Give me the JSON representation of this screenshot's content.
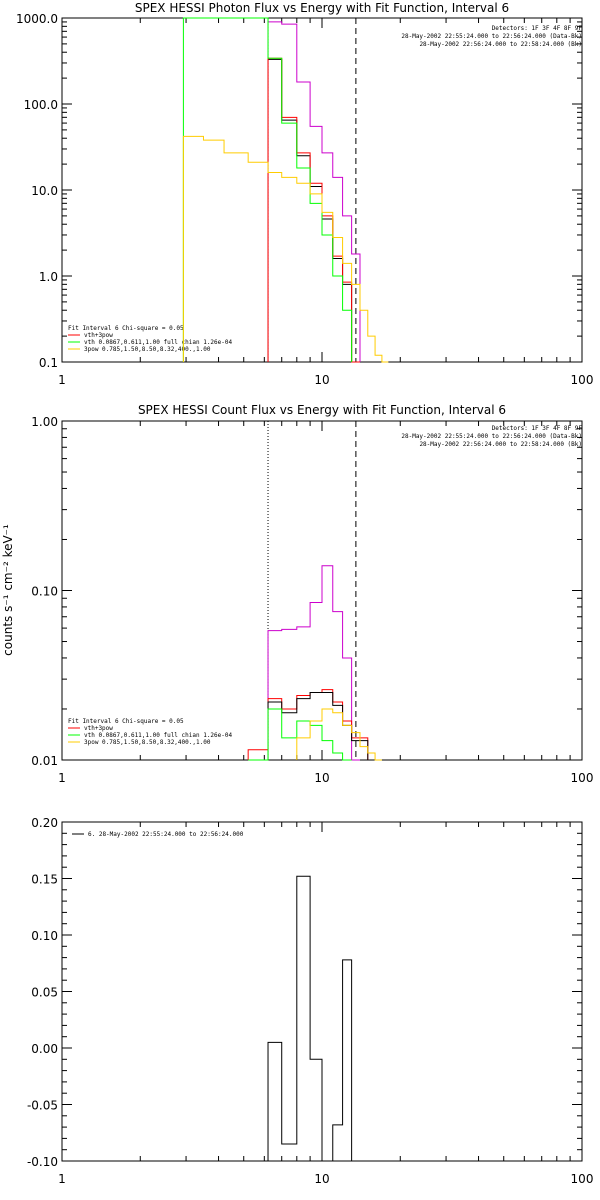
{
  "colors": {
    "red": "#ff0000",
    "green": "#00ff00",
    "yellow": "#ffcc00",
    "magenta": "#cc00cc",
    "black": "#000000"
  },
  "chart_data": [
    {
      "type": "line",
      "title": "SPEX HESSI Photon Flux vs Energy with Fit Function, Interval 6",
      "xscale": "log",
      "yscale": "log",
      "xlim": [
        1,
        100
      ],
      "ylim": [
        0.1,
        1000
      ],
      "xticklabels": [
        "1",
        "10",
        "100"
      ],
      "yticks": [
        0.1,
        1,
        10,
        100,
        1000
      ],
      "yticklabels": [
        "0.1",
        "1.0",
        "10.0",
        "100.0",
        "1000.0"
      ],
      "vlines": [
        {
          "x": 6.2,
          "style": "dotted"
        },
        {
          "x": 13.5,
          "style": "dashed"
        }
      ],
      "info_lines": [
        "Detectors: 1F 3F 4F 8F 9F",
        "28-May-2002 22:55:24.000 to 22:56:24.000 (Data-Bk)",
        "28-May-2002 22:56:24.000 to 22:58:24.000 (Bk)"
      ],
      "info_colors": [
        "black",
        "black",
        "magenta"
      ],
      "fit_lines": [
        "Fit Interval 6   Chi-square = 0.05",
        "vth+3pow",
        "vth 0.0867,0.611,1.00  full chian 1.26e-04",
        "3pow 0.785,1.50,8.50,8.32,400.,1.00"
      ],
      "fit_colors": [
        "black",
        "red",
        "green",
        "yellow"
      ],
      "series": [
        {
          "name": "",
          "color": "magenta",
          "edges": [
            6.2,
            7.0,
            8.0,
            9.0,
            10.0,
            11.0,
            12.0,
            13.0,
            14.0
          ],
          "values": [
            900,
            850,
            180,
            55,
            27,
            14,
            5.0,
            1.8
          ]
        },
        {
          "name": "",
          "color": "black",
          "edges": [
            6.2,
            7.0,
            8.0,
            9.0,
            10.0,
            11.0,
            12.0,
            13.0,
            14.0
          ],
          "values": [
            330,
            65,
            25,
            11,
            4.6,
            1.6,
            0.8,
            0.1
          ]
        },
        {
          "name": "",
          "color": "red",
          "edges": [
            6.2,
            7.0,
            8.0,
            9.0,
            10.0,
            11.0,
            12.0,
            13.0,
            14.0
          ],
          "values": [
            340,
            70,
            27,
            12,
            5.0,
            1.7,
            0.85,
            0.1
          ]
        },
        {
          "name": "",
          "color": "green",
          "edges": [
            2.93,
            5.2,
            6.2,
            7.0,
            8.0,
            9.0,
            10.0,
            11.0,
            12.0,
            13.0
          ],
          "values": [
            1000,
            1000,
            340,
            60,
            18,
            7.0,
            3.0,
            1.0,
            0.4
          ]
        },
        {
          "name": "",
          "color": "yellow",
          "edges": [
            2.93,
            3.5,
            4.2,
            5.2,
            6.2,
            7.0,
            8.0,
            9.0,
            10.0,
            11.0,
            12.0,
            13.0,
            14.0,
            15.0,
            16.0,
            17.0,
            18.0
          ],
          "values": [
            42,
            38,
            27,
            21,
            16,
            14,
            12,
            9.0,
            5.5,
            2.8,
            1.4,
            0.8,
            0.4,
            0.2,
            0.12,
            0.1
          ]
        }
      ]
    },
    {
      "type": "line",
      "title": "SPEX HESSI Count Flux vs Energy with Fit Function, Interval 6",
      "ylabel": "counts s⁻¹ cm⁻² keV⁻¹",
      "xscale": "log",
      "yscale": "log",
      "xlim": [
        1,
        100
      ],
      "ylim": [
        0.01,
        1.0
      ],
      "xticklabels": [
        "1",
        "10",
        "100"
      ],
      "yticks": [
        0.01,
        0.1,
        1.0
      ],
      "yticklabels": [
        "0.01",
        "0.10",
        "1.00"
      ],
      "vlines": [
        {
          "x": 6.2,
          "style": "dotted"
        },
        {
          "x": 13.5,
          "style": "dashed"
        }
      ],
      "info_lines": [
        "Detectors: 1F 3F 4F 8F 9F",
        "28-May-2002 22:55:24.000 to 22:56:24.000 (Data-Bk)",
        "28-May-2002 22:56:24.000 to 22:58:24.000 (Bk)"
      ],
      "info_colors": [
        "black",
        "black",
        "magenta"
      ],
      "fit_lines": [
        "Fit Interval 6   Chi-square = 0.05",
        "vth+3pow",
        "vth 0.0867,0.611,1.00  full chian 1.26e-04",
        "3pow 0.785,1.50,8.50,8.32,400.,1.00"
      ],
      "fit_colors": [
        "black",
        "red",
        "green",
        "yellow"
      ],
      "series": [
        {
          "name": "",
          "color": "magenta",
          "edges": [
            6.2,
            7.0,
            8.0,
            9.0,
            10.0,
            11.0,
            12.0,
            13.0,
            14.0
          ],
          "values": [
            0.058,
            0.059,
            0.061,
            0.085,
            0.14,
            0.075,
            0.04,
            0.01
          ]
        },
        {
          "name": "",
          "color": "red",
          "edges": [
            5.2,
            6.2,
            7.0,
            8.0,
            9.0,
            10.0,
            11.0,
            12.0,
            13.0,
            14.0,
            15.0
          ],
          "values": [
            0.0115,
            0.023,
            0.02,
            0.024,
            0.025,
            0.026,
            0.022,
            0.017,
            0.0135,
            0.0135
          ]
        },
        {
          "name": "",
          "color": "black",
          "edges": [
            6.2,
            7.0,
            8.0,
            9.0,
            10.0,
            11.0,
            12.0,
            13.0,
            14.0,
            15.0
          ],
          "values": [
            0.022,
            0.019,
            0.023,
            0.025,
            0.025,
            0.021,
            0.016,
            0.013,
            0.013
          ]
        },
        {
          "name": "",
          "color": "green",
          "edges": [
            5.2,
            6.2,
            7.0,
            8.0,
            9.0,
            10.0,
            11.0,
            12.0,
            13.0
          ],
          "values": [
            0.01,
            0.02,
            0.0135,
            0.017,
            0.016,
            0.013,
            0.011,
            0.01
          ]
        },
        {
          "name": "",
          "color": "yellow",
          "edges": [
            8.0,
            9.0,
            10.0,
            11.0,
            12.0,
            13.0,
            14.0,
            15.0,
            16.0,
            17.0
          ],
          "values": [
            0.0135,
            0.017,
            0.02,
            0.019,
            0.016,
            0.0145,
            0.012,
            0.011,
            0.01
          ]
        }
      ]
    },
    {
      "type": "line",
      "title": "",
      "xscale": "log",
      "yscale": "linear",
      "xlim": [
        1,
        100
      ],
      "ylim": [
        -0.1,
        0.2
      ],
      "xticklabels": [
        "1",
        "10",
        "100"
      ],
      "yticks": [
        -0.1,
        -0.05,
        0.0,
        0.05,
        0.1,
        0.15,
        0.2
      ],
      "yticklabels": [
        "-0.10",
        "-0.05",
        "0.00",
        "0.05",
        "0.10",
        "0.15",
        "0.20"
      ],
      "legend": "6. 28-May-2002 22:55:24.000 to 22:56:24.000",
      "series": [
        {
          "name": "",
          "color": "black",
          "edges": [
            6.2,
            7.0,
            8.0,
            9.0,
            10.0,
            11.0,
            12.0,
            13.0
          ],
          "values": [
            0.005,
            -0.085,
            0.152,
            -0.01,
            -0.1,
            -0.068,
            0.078
          ]
        }
      ]
    }
  ]
}
